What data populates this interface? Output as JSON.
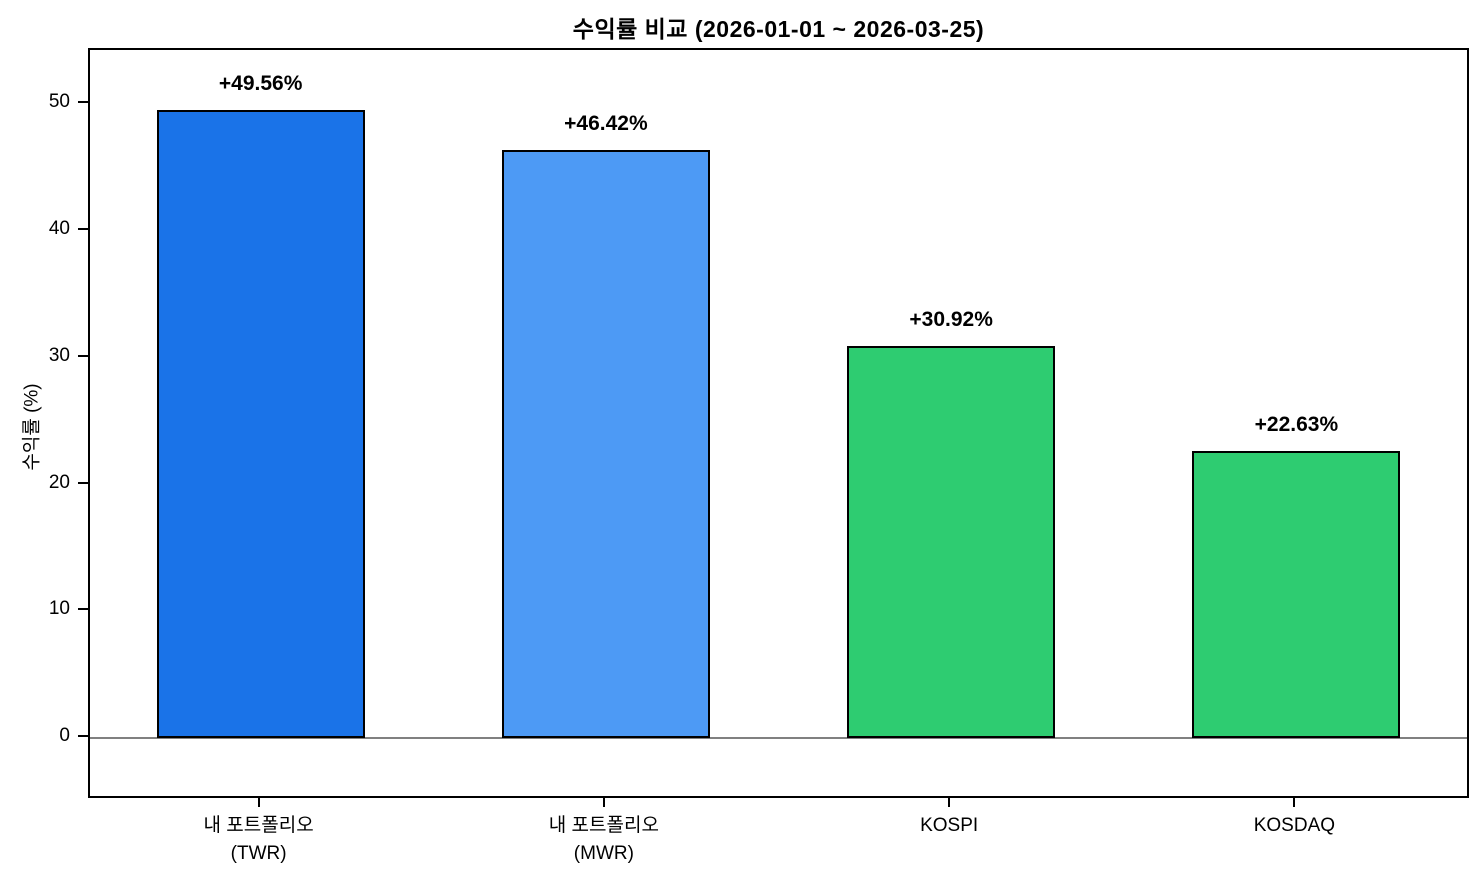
{
  "chart_data": {
    "type": "bar",
    "title": "수익률 비교 (2026-01-01 ~ 2026-03-25)",
    "ylabel": "수익률 (%)",
    "xlabel": "",
    "categories": [
      "내 포트폴리오\n(TWR)",
      "내 포트폴리오\n(MWR)",
      "KOSPI",
      "KOSDAQ"
    ],
    "values": [
      49.56,
      46.42,
      30.92,
      22.63
    ],
    "value_labels": [
      "+49.56%",
      "+46.42%",
      "+30.92%",
      "+22.63%"
    ],
    "bar_colors": [
      "#1a73e8",
      "#4d9af5",
      "#2ecc71",
      "#2ecc71"
    ],
    "bar_edge_color": "#000000",
    "y_ticks": [
      0,
      10,
      20,
      30,
      40,
      50
    ],
    "ylim": [
      -4.9,
      54.3
    ],
    "zero_line_color": "#808080",
    "grid": false,
    "legend_position": "none"
  }
}
